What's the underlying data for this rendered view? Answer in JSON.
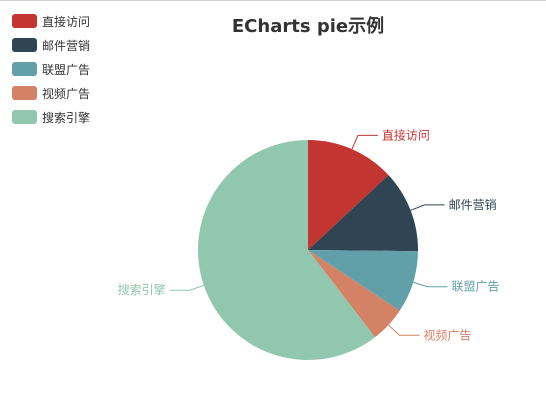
{
  "chart_data": {
    "type": "pie",
    "title": "ECharts pie示例",
    "legend_position": "top-left",
    "series": [
      {
        "name": "",
        "data": [
          {
            "name": "直接访问",
            "value": 335
          },
          {
            "name": "邮件营销",
            "value": 310
          },
          {
            "name": "联盟广告",
            "value": 234
          },
          {
            "name": "视频广告",
            "value": 135
          },
          {
            "name": "搜索引擎",
            "value": 1548
          }
        ]
      }
    ],
    "colors": [
      "#c23531",
      "#2f4554",
      "#61a0a8",
      "#d48265",
      "#91c7ae"
    ]
  }
}
